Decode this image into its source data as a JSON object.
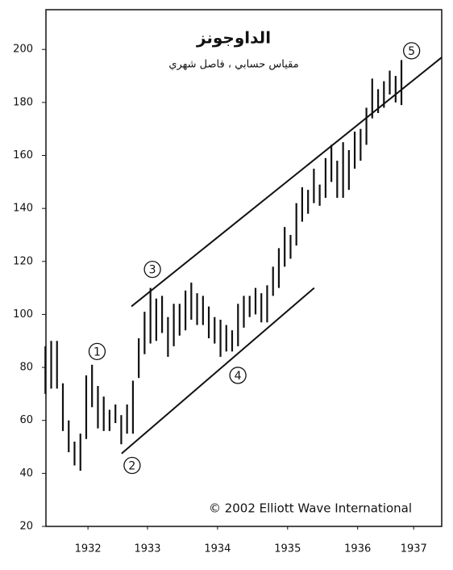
{
  "chart_data": {
    "type": "range-bar",
    "title": "الداوجونز",
    "subtitle": "مقياس حسابي ، فاصل شهري",
    "copyright": "© 2002 Elliott Wave International",
    "color": "#111111",
    "x": [
      1932.042,
      1932.125,
      1932.208,
      1932.292,
      1932.375,
      1932.458,
      1932.542,
      1932.625,
      1932.708,
      1932.792,
      1932.875,
      1932.958,
      1933.042,
      1933.125,
      1933.208,
      1933.292,
      1933.375,
      1933.458,
      1933.542,
      1933.625,
      1933.708,
      1933.792,
      1933.875,
      1933.958,
      1934.042,
      1934.125,
      1934.208,
      1934.292,
      1934.375,
      1934.458,
      1934.542,
      1934.625,
      1934.708,
      1934.792,
      1934.875,
      1934.958,
      1935.042,
      1935.125,
      1935.208,
      1935.292,
      1935.375,
      1935.458,
      1935.542,
      1935.625,
      1935.708,
      1935.792,
      1935.875,
      1935.958,
      1936.042,
      1936.125,
      1936.208,
      1936.292,
      1936.375,
      1936.458,
      1936.542,
      1936.625,
      1936.708,
      1936.792,
      1936.875,
      1936.958,
      1937.042,
      1937.125
    ],
    "low": [
      70,
      72,
      72,
      56,
      48,
      43,
      41,
      53,
      65,
      57,
      56,
      56,
      59,
      51,
      55,
      55,
      76,
      85,
      89,
      90,
      93,
      84,
      88,
      92,
      94,
      98,
      96,
      96,
      91,
      89,
      84,
      86,
      86,
      88,
      95,
      99,
      100,
      97,
      97,
      107,
      110,
      118,
      121,
      126,
      135,
      138,
      142,
      141,
      144,
      150,
      144,
      144,
      147,
      155,
      158,
      164,
      174,
      176,
      178,
      183,
      180,
      179
    ],
    "high": [
      88,
      90,
      90,
      74,
      60,
      52,
      55,
      77,
      81,
      73,
      69,
      64,
      66,
      62,
      66,
      75,
      91,
      101,
      110,
      106,
      107,
      99,
      104,
      104,
      109,
      112,
      108,
      107,
      103,
      99,
      98,
      96,
      94,
      104,
      107,
      107,
      110,
      108,
      111,
      118,
      125,
      133,
      130,
      142,
      148,
      147,
      155,
      149,
      159,
      164,
      158,
      165,
      162,
      169,
      170,
      178,
      189,
      185,
      188,
      192,
      190,
      196
    ],
    "trendlines": [
      {
        "x": [
          1933.27,
          1937.7
        ],
        "y": [
          103,
          197
        ]
      },
      {
        "x": [
          1933.13,
          1935.88
        ],
        "y": [
          47.5,
          110
        ]
      }
    ],
    "wave_labels": [
      {
        "label": "1",
        "x": 1932.78,
        "y": 86
      },
      {
        "label": "2",
        "x": 1933.28,
        "y": 43
      },
      {
        "label": "3",
        "x": 1933.57,
        "y": 117
      },
      {
        "label": "4",
        "x": 1934.79,
        "y": 77
      },
      {
        "label": "5",
        "x": 1937.27,
        "y": 199.5
      }
    ],
    "xlim": [
      1932.05,
      1937.7
    ],
    "ylim": [
      20,
      215
    ],
    "xticks": [
      {
        "value": 1932.65,
        "label": "1932"
      },
      {
        "value": 1933.5,
        "label": "1933"
      },
      {
        "value": 1934.5,
        "label": "1934"
      },
      {
        "value": 1935.5,
        "label": "1935"
      },
      {
        "value": 1936.5,
        "label": "1936"
      },
      {
        "value": 1937.3,
        "label": "1937"
      }
    ],
    "yticks": [
      20,
      40,
      60,
      80,
      100,
      120,
      140,
      160,
      180,
      200
    ]
  }
}
